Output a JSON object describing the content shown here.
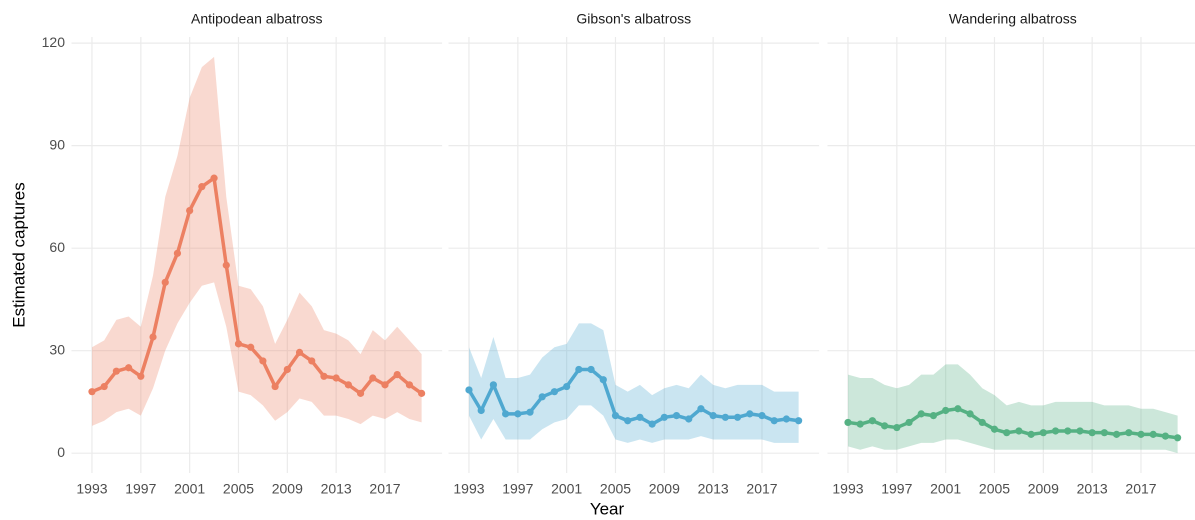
{
  "chart_data": {
    "type": "line",
    "xlabel": "Year",
    "ylabel": "Estimated captures",
    "xlim": [
      1991.65,
      2021.35
    ],
    "ylim": [
      -5.8,
      121.8
    ],
    "xticks": [
      1993,
      1997,
      2001,
      2005,
      2009,
      2013,
      2017
    ],
    "yticks": [
      0,
      30,
      60,
      90,
      120
    ],
    "grid": true,
    "x": [
      1993,
      1994,
      1995,
      1996,
      1997,
      1998,
      1999,
      2000,
      2001,
      2002,
      2003,
      2004,
      2005,
      2006,
      2007,
      2008,
      2009,
      2010,
      2011,
      2012,
      2013,
      2014,
      2015,
      2016,
      2017,
      2018,
      2019,
      2020
    ],
    "panels": [
      {
        "title": "Antipodean albatross",
        "color": "#ec8062",
        "values": [
          18,
          19.5,
          24,
          25,
          22.5,
          34,
          50,
          58.5,
          71,
          78,
          80.5,
          55,
          32,
          31,
          27,
          19.5,
          24.5,
          29.5,
          27,
          22.5,
          22,
          20,
          17.5,
          22,
          20,
          23,
          20,
          17.5
        ],
        "lower": [
          8,
          9.5,
          12,
          13,
          11,
          19,
          30,
          38,
          44,
          49,
          50,
          37,
          18,
          17,
          14,
          9.5,
          12,
          16,
          15,
          11,
          11,
          10,
          8.5,
          11,
          10,
          12,
          10,
          9
        ],
        "upper": [
          31,
          33,
          39,
          40,
          37,
          52,
          75,
          87,
          104,
          113,
          116,
          75,
          49,
          48,
          43,
          32,
          39,
          47,
          43,
          36,
          35,
          33,
          29,
          36,
          33,
          37,
          33,
          29
        ]
      },
      {
        "title": "Gibson's albatross",
        "color": "#4fa8d0",
        "values": [
          18.5,
          12.5,
          20,
          11.5,
          11.5,
          12,
          16.5,
          18,
          19.5,
          24.5,
          24.5,
          21.5,
          11,
          9.5,
          10.5,
          8.5,
          10.5,
          11,
          10,
          13,
          11,
          10.5,
          10.5,
          11.5,
          11,
          9.5,
          10,
          9.5
        ],
        "lower": [
          11,
          4,
          10,
          4,
          4,
          4,
          7,
          9,
          10,
          14,
          14,
          11,
          4,
          3,
          4,
          3,
          4,
          4,
          4,
          5,
          4,
          4,
          4,
          4,
          4,
          3,
          3,
          3
        ],
        "upper": [
          31,
          22,
          34,
          22,
          22,
          23,
          28,
          31,
          32,
          38,
          38,
          36,
          20,
          18,
          20,
          17,
          19,
          20,
          19,
          23,
          20,
          19,
          20,
          20,
          20,
          18,
          18,
          18
        ]
      },
      {
        "title": "Wandering albatross",
        "color": "#55b183",
        "values": [
          9,
          8.5,
          9.5,
          8,
          7.5,
          9,
          11.5,
          11,
          12.5,
          13,
          11.5,
          9,
          7,
          6,
          6.5,
          5.5,
          6,
          6.5,
          6.5,
          6.5,
          6,
          6,
          5.5,
          6,
          5.5,
          5.5,
          5,
          4.5
        ],
        "lower": [
          2,
          1,
          2,
          1,
          1,
          2,
          3,
          3,
          4,
          4,
          3,
          2,
          1,
          1,
          1,
          1,
          1,
          1,
          1,
          1,
          1,
          1,
          1,
          1,
          1,
          1,
          1,
          0
        ],
        "upper": [
          23,
          22,
          22,
          20,
          19,
          20,
          23,
          23,
          26,
          26,
          23,
          19,
          17,
          14,
          15,
          14,
          14,
          15,
          15,
          15,
          15,
          14,
          14,
          14,
          13,
          13,
          12,
          11
        ]
      }
    ]
  }
}
